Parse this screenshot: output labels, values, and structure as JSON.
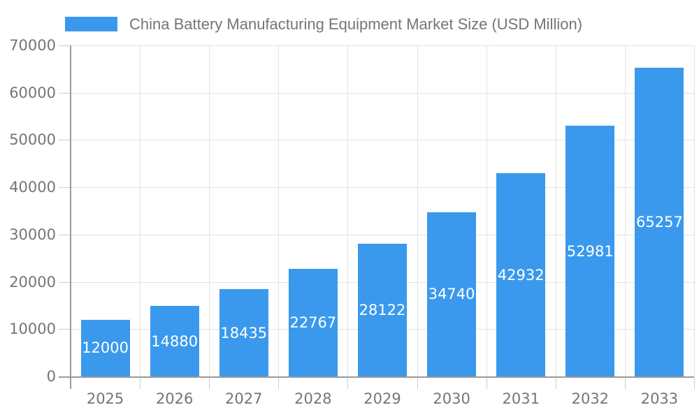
{
  "legend": {
    "label": "China Battery Manufacturing Equipment Market Size (USD Million)"
  },
  "chart_data": {
    "type": "bar",
    "title": "China Battery Manufacturing Equipment Market Size (USD Million)",
    "categories": [
      "2025",
      "2026",
      "2027",
      "2028",
      "2029",
      "2030",
      "2031",
      "2032",
      "2033"
    ],
    "values": [
      12000,
      14880,
      18435,
      22767,
      28122,
      34740,
      42932,
      52981,
      65257
    ],
    "series": [
      {
        "name": "China Battery Manufacturing Equipment Market Size (USD Million)",
        "values": [
          12000,
          14880,
          18435,
          22767,
          28122,
          34740,
          42932,
          52981,
          65257
        ]
      }
    ],
    "xlabel": "",
    "ylabel": "",
    "ylim": [
      0,
      70000
    ],
    "ytick_step": 10000,
    "yticks": [
      0,
      10000,
      20000,
      30000,
      40000,
      50000,
      60000,
      70000
    ],
    "grid": true,
    "legend_position": "top",
    "value_labels": "inside-center"
  },
  "colors": {
    "bar": "#3A99EC",
    "value_label": "#FFFFFF",
    "axis_text": "#757575",
    "legend_text": "#757575",
    "axis_line": "#9A9A9A",
    "gridline": "#E3E3E3",
    "tick": "#CCCCCC",
    "background": "#FFFFFF"
  }
}
